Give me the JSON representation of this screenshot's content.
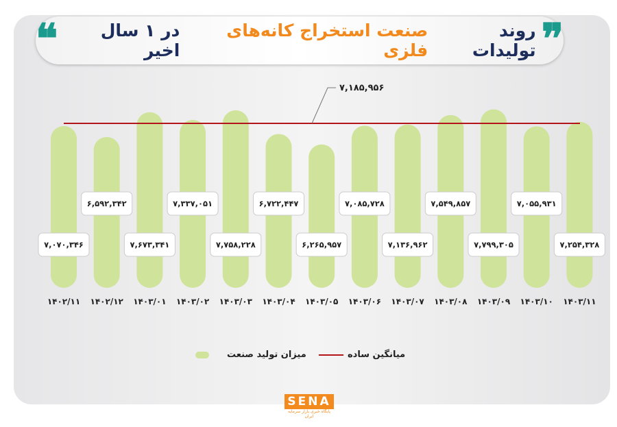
{
  "title": {
    "part1": "روند تولیدات",
    "part2": "صنعت استخراج کانه‌های فلزی",
    "part3": "در ۱ سال اخیر",
    "open_quote": "❞",
    "close_quote": "❝"
  },
  "chart_data": {
    "type": "bar",
    "title": "روند تولیدات صنعت استخراج کانه‌های فلزی در ۱ سال اخیر",
    "categories": [
      "۱۴۰۲/۱۱",
      "۱۴۰۲/۱۲",
      "۱۴۰۳/۰۱",
      "۱۴۰۳/۰۲",
      "۱۴۰۳/۰۳",
      "۱۴۰۳/۰۴",
      "۱۴۰۳/۰۵",
      "۱۴۰۳/۰۶",
      "۱۴۰۳/۰۷",
      "۱۴۰۳/۰۸",
      "۱۴۰۳/۰۹",
      "۱۴۰۳/۱۰",
      "۱۴۰۳/۱۱"
    ],
    "series": [
      {
        "name": "میزان تولید صنعت",
        "color": "#cfe39a",
        "values": [
          7070346,
          6592342,
          7673341,
          7337051,
          7758228,
          6722447,
          6265957,
          7085728,
          7136962,
          7549857,
          7799305,
          7055931,
          7254328
        ],
        "labels": [
          "۷,۰۷۰,۳۴۶",
          "۶,۵۹۲,۳۴۲",
          "۷,۶۷۳,۳۴۱",
          "۷,۳۳۷,۰۵۱",
          "۷,۷۵۸,۲۲۸",
          "۶,۷۲۲,۴۴۷",
          "۶,۲۶۵,۹۵۷",
          "۷,۰۸۵,۷۲۸",
          "۷,۱۳۶,۹۶۲",
          "۷,۵۴۹,۸۵۷",
          "۷,۷۹۹,۳۰۵",
          "۷,۰۵۵,۹۳۱",
          "۷,۲۵۴,۳۲۸"
        ]
      },
      {
        "name": "میانگین ساده",
        "color": "#b3151b",
        "type": "hline",
        "value": 7185956,
        "label": "۷,۱۸۵,۹۵۶"
      }
    ],
    "ylim": [
      0,
      8000000
    ],
    "grid": false,
    "legend": "bottom"
  },
  "logo": {
    "text": "SENA",
    "subtitle": "پایگاه خبری بازار سرمایه ایران"
  }
}
